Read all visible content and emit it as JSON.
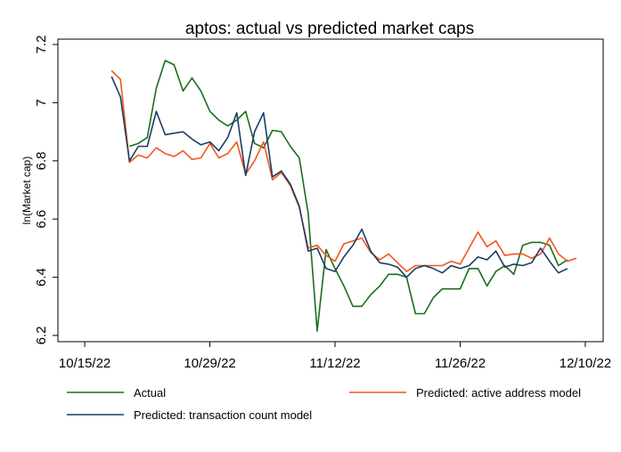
{
  "chart_data": {
    "type": "line",
    "title": "aptos: actual vs predicted market caps",
    "xlabel": "",
    "ylabel": "ln(Market cap)",
    "ylim": [
      6.2,
      7.2
    ],
    "yticks": [
      6.2,
      6.4,
      6.6,
      6.8,
      7,
      7.2
    ],
    "ytick_labels": [
      "6.2",
      "6.4",
      "6.6",
      "6.8",
      "7",
      "7.2"
    ],
    "xlim_days": [
      -3,
      58
    ],
    "xticks_days": [
      0,
      14,
      28,
      42,
      56
    ],
    "xtick_labels": [
      "10/15/22",
      "10/29/22",
      "11/12/22",
      "11/26/22",
      "12/10/22"
    ],
    "x_start_day": 3,
    "legend_position": "bottom",
    "series": [
      {
        "name": "Actual",
        "color": "#1a6e1a",
        "start_day": 5,
        "values": [
          6.85,
          6.86,
          6.88,
          7.05,
          7.145,
          7.13,
          7.04,
          7.085,
          7.04,
          6.97,
          6.94,
          6.92,
          6.94,
          6.97,
          6.86,
          6.845,
          6.905,
          6.9,
          6.85,
          6.81,
          6.62,
          6.215,
          6.495,
          6.43,
          6.37,
          6.3,
          6.3,
          6.34,
          6.37,
          6.41,
          6.41,
          6.4,
          6.275,
          6.275,
          6.33,
          6.36,
          6.36,
          6.36,
          6.43,
          6.43,
          6.37,
          6.42,
          6.44,
          6.41,
          6.51,
          6.52,
          6.52,
          6.51,
          6.44,
          6.46
        ]
      },
      {
        "name": "Predicted: active address model",
        "color": "#f2561d",
        "start_day": 3,
        "values": [
          7.11,
          7.08,
          6.795,
          6.82,
          6.81,
          6.845,
          6.825,
          6.815,
          6.835,
          6.805,
          6.81,
          6.86,
          6.81,
          6.825,
          6.865,
          6.755,
          6.8,
          6.865,
          6.735,
          6.76,
          6.715,
          6.64,
          6.5,
          6.51,
          6.475,
          6.455,
          6.515,
          6.525,
          6.535,
          6.485,
          6.46,
          6.48,
          6.45,
          6.42,
          6.44,
          6.44,
          6.44,
          6.44,
          6.455,
          6.445,
          6.5,
          6.555,
          6.505,
          6.525,
          6.475,
          6.48,
          6.48,
          6.465,
          6.48,
          6.535,
          6.48,
          6.455,
          6.465
        ]
      },
      {
        "name": "Predicted: transaction count model",
        "color": "#1a3d66",
        "start_day": 3,
        "values": [
          7.09,
          7.02,
          6.8,
          6.85,
          6.85,
          6.97,
          6.89,
          6.895,
          6.9,
          6.875,
          6.855,
          6.865,
          6.835,
          6.88,
          6.965,
          6.75,
          6.9,
          6.965,
          6.745,
          6.765,
          6.72,
          6.645,
          6.49,
          6.5,
          6.43,
          6.42,
          6.47,
          6.51,
          6.565,
          6.49,
          6.45,
          6.445,
          6.435,
          6.4,
          6.43,
          6.44,
          6.43,
          6.415,
          6.44,
          6.43,
          6.44,
          6.47,
          6.46,
          6.49,
          6.435,
          6.445,
          6.44,
          6.45,
          6.5,
          6.455,
          6.415,
          6.43
        ]
      }
    ]
  }
}
